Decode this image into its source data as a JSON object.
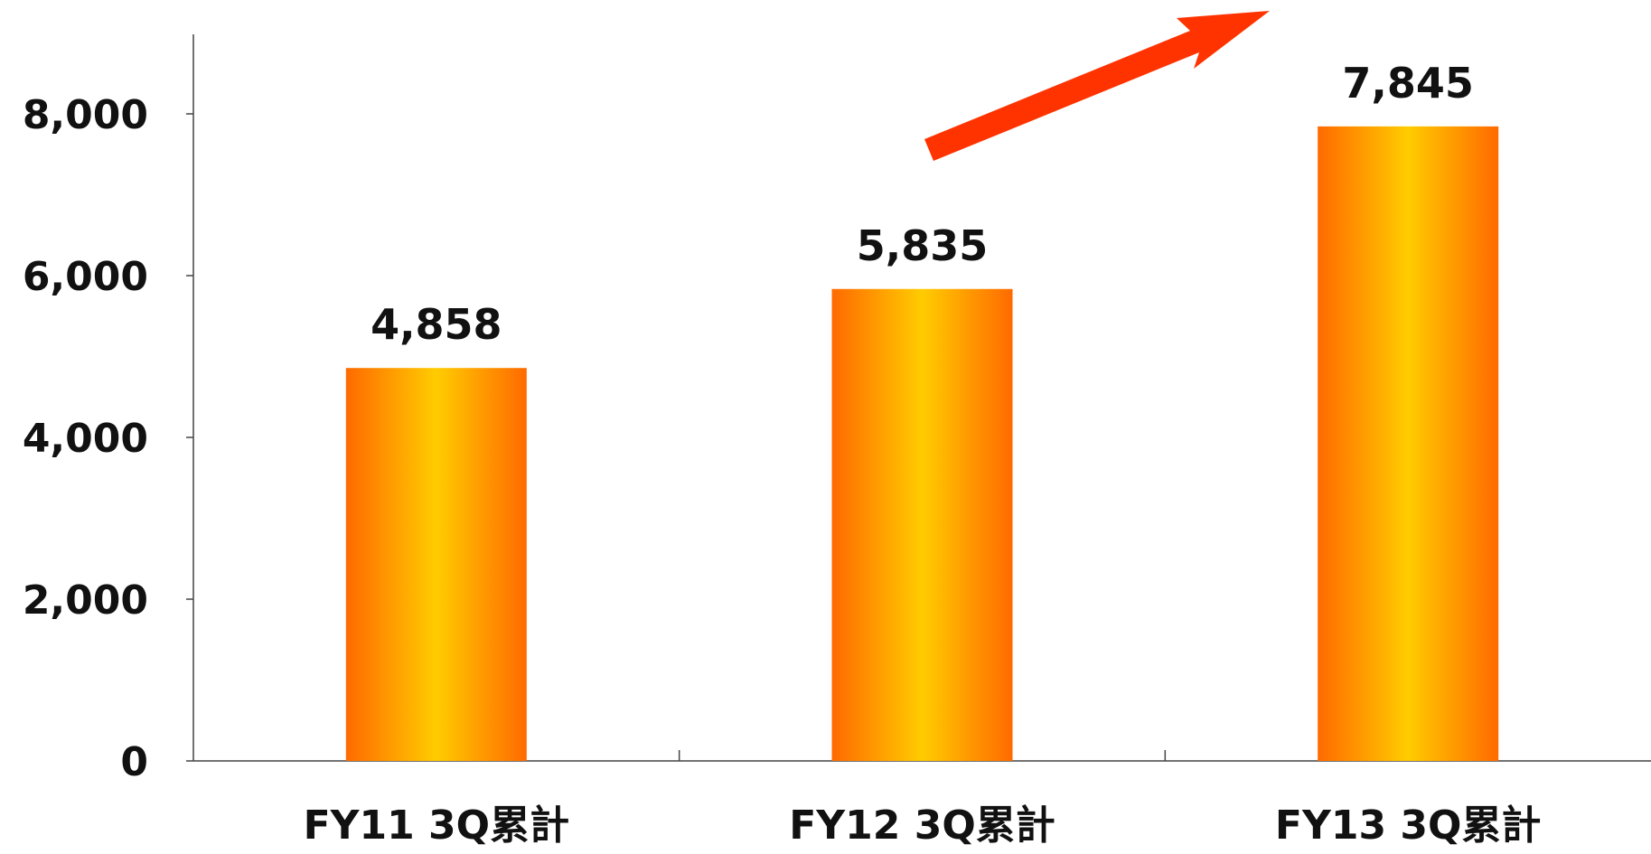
{
  "chart_data": {
    "type": "bar",
    "categories": [
      "FY11 3Q累計",
      "FY12 3Q累計",
      "FY13 3Q累計"
    ],
    "values": [
      4858,
      5835,
      7845
    ],
    "data_labels": [
      "4,858",
      "5,835",
      "7,845"
    ],
    "ylim": [
      0,
      9000
    ],
    "yticks": [
      0,
      2000,
      4000,
      6000,
      8000
    ],
    "ytick_labels": [
      "0",
      "2,000",
      "4,000",
      "6,000",
      "8,000"
    ],
    "grid": false,
    "legend": "none",
    "annotation": "upward-trend-arrow",
    "colors": {
      "bar_edge": "#ff6a00",
      "bar_center": "#ffcc00",
      "arrow": "#ff3300",
      "axis": "#444444"
    }
  }
}
